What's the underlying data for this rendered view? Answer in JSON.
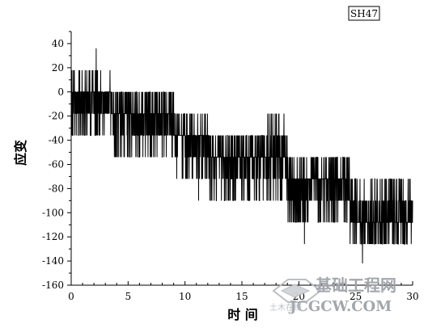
{
  "chart_data": {
    "type": "line",
    "legend": "SH47",
    "xlabel": "时 间",
    "ylabel": "应变",
    "xlim": [
      0,
      30
    ],
    "ylim": [
      -160,
      50
    ],
    "x_ticks": [
      0,
      5,
      10,
      15,
      20,
      25,
      30
    ],
    "y_ticks": [
      40,
      20,
      0,
      -20,
      -40,
      -60,
      -80,
      -100,
      -120,
      -140,
      -160
    ],
    "levels": [
      0,
      -18,
      -36,
      -54,
      -72,
      -90,
      -108,
      -126
    ],
    "segments": [
      {
        "x_start": 0,
        "x_end": 3.5,
        "base": -9,
        "low": -36,
        "high": 18
      },
      {
        "x_start": 3.5,
        "x_end": 9.0,
        "base": -27,
        "low": -54,
        "high": 0
      },
      {
        "x_start": 9.0,
        "x_end": 12.0,
        "base": -40,
        "low": -72,
        "high": -18
      },
      {
        "x_start": 12.0,
        "x_end": 17.0,
        "base": -50,
        "low": -90,
        "high": -36
      },
      {
        "x_start": 17.0,
        "x_end": 19.0,
        "base": -62,
        "low": -90,
        "high": -18
      },
      {
        "x_start": 19.0,
        "x_end": 24.5,
        "base": -80,
        "low": -108,
        "high": -54
      },
      {
        "x_start": 24.5,
        "x_end": 30,
        "base": -100,
        "low": -126,
        "high": -72
      }
    ],
    "spikes": [
      {
        "x": 2.2,
        "y": 36
      },
      {
        "x": 25.6,
        "y": -142
      },
      {
        "x": 11.2,
        "y": -90
      },
      {
        "x": 20.5,
        "y": -126
      }
    ]
  },
  "watermark": {
    "cn_text": "基础工程网",
    "en_text": "JCGCW.COM",
    "stamp_text": "土木在线",
    "color": "#9ea3a8"
  },
  "colors": {
    "axis": "#000000",
    "series": "#000000",
    "background": "#ffffff"
  }
}
